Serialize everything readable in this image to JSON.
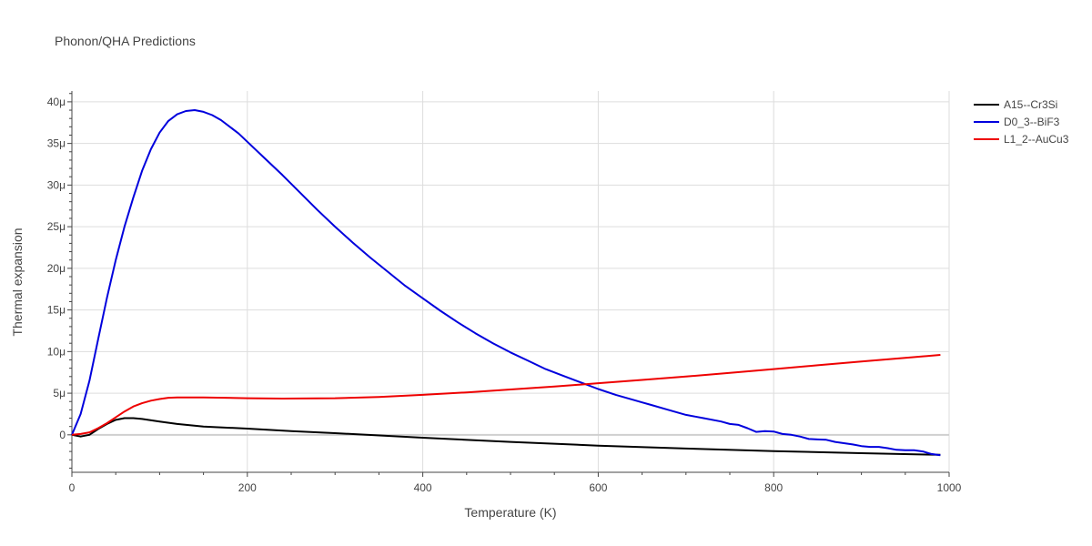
{
  "chart_data": {
    "type": "line",
    "title": "Phonon/QHA Predictions",
    "xlabel": "Temperature (K)",
    "ylabel": "Thermal expansion",
    "xlim": [
      0,
      1000
    ],
    "ylim": [
      -4.5e-06,
      4.13e-05
    ],
    "grid": true,
    "legend_position": "top-right",
    "x_ticks": [
      0,
      200,
      400,
      600,
      800,
      1000
    ],
    "x_tick_labels": [
      "0",
      "200",
      "400",
      "600",
      "800",
      "1000"
    ],
    "y_ticks": [
      0,
      5e-06,
      1e-05,
      1.5e-05,
      2e-05,
      2.5e-05,
      3e-05,
      3.5e-05,
      4e-05
    ],
    "y_tick_labels": [
      "0",
      "5μ",
      "10μ",
      "15μ",
      "20μ",
      "25μ",
      "30μ",
      "35μ",
      "40μ"
    ],
    "series": [
      {
        "name": "A15--Cr3Si",
        "color": "#000000",
        "x": [
          0,
          10,
          20,
          30,
          40,
          50,
          60,
          70,
          80,
          100,
          120,
          150,
          200,
          250,
          300,
          400,
          500,
          600,
          700,
          800,
          900,
          990
        ],
        "y": [
          0,
          -2e-07,
          0,
          7e-07,
          1.3e-06,
          1.8e-06,
          2e-06,
          2e-06,
          1.9e-06,
          1.6e-06,
          1.3e-06,
          1e-06,
          7.5e-07,
          4.5e-07,
          2e-07,
          -3.5e-07,
          -8.5e-07,
          -1.3e-06,
          -1.65e-06,
          -1.95e-06,
          -2.2e-06,
          -2.4e-06
        ]
      },
      {
        "name": "D0_3--BiF3",
        "color": "#0000dd",
        "x": [
          0,
          10,
          20,
          30,
          40,
          50,
          60,
          70,
          80,
          90,
          100,
          110,
          120,
          130,
          140,
          150,
          160,
          170,
          180,
          190,
          200,
          220,
          240,
          260,
          280,
          300,
          320,
          340,
          360,
          380,
          400,
          420,
          440,
          460,
          480,
          500,
          520,
          540,
          560,
          580,
          600,
          620,
          640,
          650,
          660,
          680,
          700,
          710,
          720,
          740,
          750,
          760,
          770,
          780,
          790,
          800,
          810,
          820,
          830,
          840,
          850,
          860,
          870,
          880,
          890,
          900,
          910,
          920,
          930,
          940,
          950,
          960,
          970,
          980,
          990
        ],
        "y": [
          0,
          2.5e-06,
          6.5e-06,
          1.15e-05,
          1.65e-05,
          2.1e-05,
          2.5e-05,
          2.85e-05,
          3.17e-05,
          3.43e-05,
          3.63e-05,
          3.77e-05,
          3.85e-05,
          3.89e-05,
          3.9e-05,
          3.88e-05,
          3.84e-05,
          3.78e-05,
          3.7e-05,
          3.62e-05,
          3.52e-05,
          3.32e-05,
          3.12e-05,
          2.91e-05,
          2.7e-05,
          2.5e-05,
          2.31e-05,
          2.13e-05,
          1.96e-05,
          1.79e-05,
          1.64e-05,
          1.49e-05,
          1.35e-05,
          1.22e-05,
          1.1e-05,
          9.9e-06,
          8.9e-06,
          7.9e-06,
          7.1e-06,
          6.3e-06,
          5.5e-06,
          4.8e-06,
          4.2e-06,
          3.9e-06,
          3.6e-06,
          3e-06,
          2.4e-06,
          2.2e-06,
          2e-06,
          1.6e-06,
          1.3e-06,
          1.2e-06,
          8e-07,
          3.5e-07,
          4.5e-07,
          4e-07,
          1e-07,
          0,
          -2e-07,
          -5e-07,
          -5.5e-07,
          -6e-07,
          -8.5e-07,
          -1e-06,
          -1.15e-06,
          -1.35e-06,
          -1.45e-06,
          -1.45e-06,
          -1.6e-06,
          -1.8e-06,
          -1.85e-06,
          -1.85e-06,
          -2e-06,
          -2.3e-06,
          -2.45e-06
        ]
      },
      {
        "name": "L1_2--AuCu3",
        "color": "#ee0000",
        "x": [
          0,
          10,
          20,
          30,
          40,
          50,
          60,
          70,
          80,
          90,
          100,
          110,
          120,
          130,
          150,
          200,
          240,
          300,
          350,
          400,
          450,
          500,
          550,
          600,
          650,
          700,
          750,
          800,
          850,
          900,
          950,
          990
        ],
        "y": [
          0,
          1e-07,
          3e-07,
          8e-07,
          1.4e-06,
          2.1e-06,
          2.8e-06,
          3.4e-06,
          3.8e-06,
          4.1e-06,
          4.3e-06,
          4.45e-06,
          4.5e-06,
          4.5e-06,
          4.5e-06,
          4.4e-06,
          4.35e-06,
          4.4e-06,
          4.55e-06,
          4.8e-06,
          5.1e-06,
          5.45e-06,
          5.8e-06,
          6.2e-06,
          6.6e-06,
          7e-06,
          7.45e-06,
          7.9e-06,
          8.35e-06,
          8.8e-06,
          9.25e-06,
          9.6e-06
        ]
      }
    ]
  }
}
